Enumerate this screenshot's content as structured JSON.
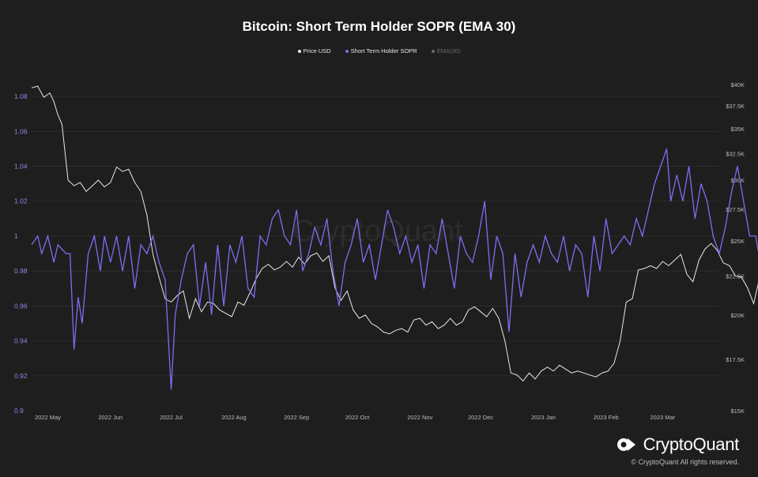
{
  "chart_data": {
    "type": "line",
    "title": "Bitcoin: Short Term Holder SOPR (EMA 30)",
    "legend": [
      {
        "name": "Price USD",
        "color": "#f2f2f2"
      },
      {
        "name": "Short Term Holder SOPR",
        "color": "#7b6ff2"
      },
      {
        "name": "EMA(30)",
        "color": "#6b6b6b"
      }
    ],
    "x_tick_labels": [
      "2022 May",
      "2022 Jun",
      "2022 Jul",
      "2022 Aug",
      "2022 Sep",
      "2022 Oct",
      "2022 Nov",
      "2022 Dec",
      "2023 Jan",
      "2023 Feb",
      "2023 Mar"
    ],
    "x_range": [
      "2022-04-23",
      "2023-03-29"
    ],
    "y_left": {
      "ticks": [
        "0.9",
        "0.92",
        "0.94",
        "0.96",
        "0.98",
        "1",
        "1.02",
        "1.04",
        "1.06",
        "1.08"
      ],
      "ylim": [
        0.9,
        1.09
      ]
    },
    "y_right": {
      "ticks": [
        "$15K",
        "$17.5K",
        "$20K",
        "$22.5K",
        "$25K",
        "$27.5K",
        "$30K",
        "$32.5K",
        "$35K",
        "$37.5K",
        "$40K"
      ]
    },
    "series": [
      {
        "name": "Short Term Holder SOPR",
        "axis": "left",
        "anchors": [
          [
            0,
            0.995
          ],
          [
            3,
            1.0
          ],
          [
            5,
            0.99
          ],
          [
            8,
            1.0
          ],
          [
            11,
            0.985
          ],
          [
            13,
            0.995
          ],
          [
            17,
            0.99
          ],
          [
            19,
            0.99
          ],
          [
            21,
            0.935
          ],
          [
            23,
            0.965
          ],
          [
            25,
            0.95
          ],
          [
            28,
            0.99
          ],
          [
            31,
            1.0
          ],
          [
            34,
            0.98
          ],
          [
            36,
            1.0
          ],
          [
            39,
            0.985
          ],
          [
            42,
            1.0
          ],
          [
            45,
            0.98
          ],
          [
            48,
            1.0
          ],
          [
            51,
            0.97
          ],
          [
            54,
            0.995
          ],
          [
            57,
            0.99
          ],
          [
            60,
            1.0
          ],
          [
            63,
            0.985
          ],
          [
            66,
            0.975
          ],
          [
            69,
            0.912
          ],
          [
            71,
            0.955
          ],
          [
            74,
            0.975
          ],
          [
            77,
            0.99
          ],
          [
            80,
            0.995
          ],
          [
            83,
            0.96
          ],
          [
            86,
            0.985
          ],
          [
            89,
            0.955
          ],
          [
            92,
            0.995
          ],
          [
            95,
            0.96
          ],
          [
            98,
            0.995
          ],
          [
            101,
            0.985
          ],
          [
            104,
            1.0
          ],
          [
            107,
            0.97
          ],
          [
            110,
            0.965
          ],
          [
            113,
            1.0
          ],
          [
            116,
            0.995
          ],
          [
            119,
            1.01
          ],
          [
            122,
            1.015
          ],
          [
            125,
            1.0
          ],
          [
            128,
            0.995
          ],
          [
            131,
            1.015
          ],
          [
            134,
            0.98
          ],
          [
            137,
            0.99
          ],
          [
            140,
            1.005
          ],
          [
            143,
            0.995
          ],
          [
            146,
            1.01
          ],
          [
            149,
            0.98
          ],
          [
            152,
            0.96
          ],
          [
            155,
            0.985
          ],
          [
            158,
            0.995
          ],
          [
            161,
            1.01
          ],
          [
            164,
            0.985
          ],
          [
            167,
            0.995
          ],
          [
            170,
            0.975
          ],
          [
            173,
            0.995
          ],
          [
            176,
            1.015
          ],
          [
            179,
            1.005
          ],
          [
            182,
            0.99
          ],
          [
            185,
            1.0
          ],
          [
            188,
            0.985
          ],
          [
            191,
            0.995
          ],
          [
            194,
            0.97
          ],
          [
            197,
            0.995
          ],
          [
            200,
            0.99
          ],
          [
            203,
            1.01
          ],
          [
            206,
            0.99
          ],
          [
            209,
            0.97
          ],
          [
            212,
            1.0
          ],
          [
            215,
            0.99
          ],
          [
            218,
            0.985
          ],
          [
            221,
            1.0
          ],
          [
            224,
            1.02
          ],
          [
            227,
            0.975
          ],
          [
            230,
            1.0
          ],
          [
            233,
            0.99
          ],
          [
            236,
            0.945
          ],
          [
            239,
            0.99
          ],
          [
            242,
            0.965
          ],
          [
            245,
            0.985
          ],
          [
            248,
            0.995
          ],
          [
            251,
            0.985
          ],
          [
            254,
            1.0
          ],
          [
            257,
            0.99
          ],
          [
            260,
            0.985
          ],
          [
            263,
            1.0
          ],
          [
            266,
            0.98
          ],
          [
            269,
            0.995
          ],
          [
            272,
            0.99
          ],
          [
            275,
            0.965
          ],
          [
            278,
            1.0
          ],
          [
            281,
            0.98
          ],
          [
            284,
            1.01
          ],
          [
            287,
            0.99
          ],
          [
            290,
            0.995
          ],
          [
            293,
            1.0
          ],
          [
            296,
            0.995
          ],
          [
            299,
            1.01
          ],
          [
            302,
            1.0
          ],
          [
            305,
            1.015
          ],
          [
            308,
            1.03
          ],
          [
            311,
            1.04
          ],
          [
            314,
            1.05
          ],
          [
            316,
            1.02
          ],
          [
            319,
            1.035
          ],
          [
            322,
            1.02
          ],
          [
            325,
            1.04
          ],
          [
            328,
            1.01
          ],
          [
            331,
            1.03
          ],
          [
            334,
            1.02
          ],
          [
            337,
            1.0
          ],
          [
            340,
            0.99
          ],
          [
            343,
            1.005
          ],
          [
            346,
            1.025
          ],
          [
            349,
            1.04
          ],
          [
            352,
            1.02
          ],
          [
            355,
            1.0
          ],
          [
            358,
            1.0
          ],
          [
            361,
            0.98
          ],
          [
            364,
            1.02
          ],
          [
            367,
            1.08
          ],
          [
            369,
            1.04
          ],
          [
            372,
            1.03
          ],
          [
            375,
            1.015
          ],
          [
            378,
            1.04
          ],
          [
            381,
            0.995
          ]
        ]
      },
      {
        "name": "Price USD",
        "axis": "right",
        "anchors": [
          [
            0,
            39600
          ],
          [
            3,
            39800
          ],
          [
            6,
            38500
          ],
          [
            9,
            39000
          ],
          [
            11,
            38000
          ],
          [
            13,
            36500
          ],
          [
            15,
            35500
          ],
          [
            18,
            30000
          ],
          [
            21,
            29500
          ],
          [
            24,
            29800
          ],
          [
            27,
            29000
          ],
          [
            30,
            29500
          ],
          [
            33,
            30000
          ],
          [
            36,
            29400
          ],
          [
            39,
            29800
          ],
          [
            42,
            31200
          ],
          [
            45,
            30800
          ],
          [
            48,
            31000
          ],
          [
            51,
            29800
          ],
          [
            54,
            29000
          ],
          [
            57,
            27000
          ],
          [
            60,
            24000
          ],
          [
            63,
            22400
          ],
          [
            66,
            21000
          ],
          [
            69,
            20800
          ],
          [
            72,
            21200
          ],
          [
            75,
            21500
          ],
          [
            78,
            19800
          ],
          [
            81,
            21000
          ],
          [
            84,
            20200
          ],
          [
            87,
            20800
          ],
          [
            90,
            20700
          ],
          [
            93,
            20300
          ],
          [
            96,
            20100
          ],
          [
            99,
            19900
          ],
          [
            102,
            20800
          ],
          [
            105,
            20600
          ],
          [
            108,
            21400
          ],
          [
            111,
            22300
          ],
          [
            114,
            23000
          ],
          [
            117,
            23300
          ],
          [
            120,
            22900
          ],
          [
            123,
            23100
          ],
          [
            126,
            23500
          ],
          [
            129,
            23100
          ],
          [
            132,
            23800
          ],
          [
            135,
            23300
          ],
          [
            138,
            23900
          ],
          [
            141,
            24100
          ],
          [
            144,
            23500
          ],
          [
            147,
            23900
          ],
          [
            150,
            21700
          ],
          [
            153,
            20900
          ],
          [
            156,
            21500
          ],
          [
            159,
            20300
          ],
          [
            162,
            19800
          ],
          [
            165,
            20000
          ],
          [
            168,
            19500
          ],
          [
            171,
            19300
          ],
          [
            174,
            19000
          ],
          [
            177,
            18900
          ],
          [
            180,
            19100
          ],
          [
            183,
            19200
          ],
          [
            186,
            19000
          ],
          [
            189,
            19700
          ],
          [
            192,
            19800
          ],
          [
            195,
            19400
          ],
          [
            198,
            19600
          ],
          [
            201,
            19200
          ],
          [
            204,
            19400
          ],
          [
            207,
            19800
          ],
          [
            210,
            19400
          ],
          [
            213,
            19600
          ],
          [
            216,
            20300
          ],
          [
            219,
            20500
          ],
          [
            222,
            20200
          ],
          [
            225,
            19900
          ],
          [
            228,
            20400
          ],
          [
            231,
            19800
          ],
          [
            234,
            18500
          ],
          [
            237,
            16800
          ],
          [
            240,
            16700
          ],
          [
            243,
            16400
          ],
          [
            246,
            16800
          ],
          [
            249,
            16500
          ],
          [
            252,
            16900
          ],
          [
            255,
            17100
          ],
          [
            258,
            16900
          ],
          [
            261,
            17200
          ],
          [
            264,
            17000
          ],
          [
            267,
            16800
          ],
          [
            270,
            16900
          ],
          [
            273,
            16800
          ],
          [
            276,
            16700
          ],
          [
            279,
            16600
          ],
          [
            282,
            16800
          ],
          [
            285,
            16900
          ],
          [
            288,
            17300
          ],
          [
            291,
            18500
          ],
          [
            294,
            20800
          ],
          [
            297,
            21000
          ],
          [
            300,
            22900
          ],
          [
            303,
            23000
          ],
          [
            306,
            23200
          ],
          [
            309,
            23000
          ],
          [
            312,
            23500
          ],
          [
            315,
            23200
          ],
          [
            318,
            23600
          ],
          [
            321,
            24000
          ],
          [
            324,
            22600
          ],
          [
            327,
            22100
          ],
          [
            330,
            23600
          ],
          [
            333,
            24400
          ],
          [
            336,
            24800
          ],
          [
            339,
            24300
          ],
          [
            342,
            23400
          ],
          [
            345,
            23200
          ],
          [
            348,
            22500
          ],
          [
            351,
            22400
          ],
          [
            354,
            21700
          ],
          [
            357,
            20700
          ],
          [
            360,
            22400
          ],
          [
            363,
            25700
          ],
          [
            366,
            26500
          ],
          [
            369,
            27500
          ],
          [
            372,
            28200
          ],
          [
            375,
            27800
          ],
          [
            378,
            28000
          ],
          [
            381,
            27500
          ]
        ]
      }
    ],
    "watermark": "CryptoQuant"
  },
  "brand": {
    "name": "CryptoQuant",
    "copyright": "© CryptoQuant All rights reserved."
  }
}
